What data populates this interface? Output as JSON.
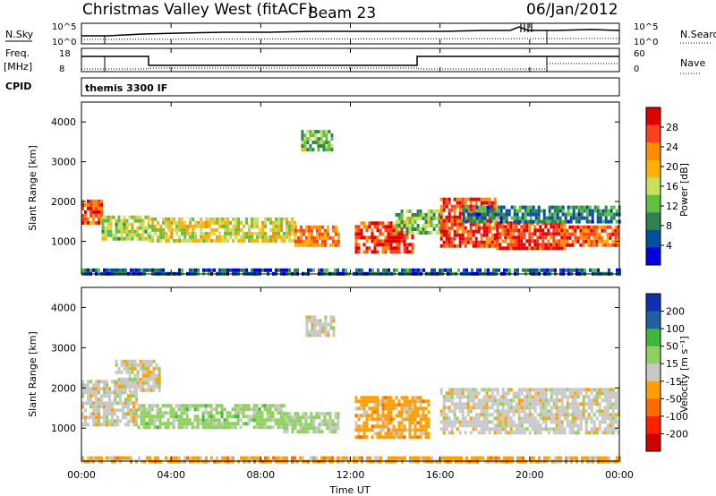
{
  "header": {
    "station": "Christmas Valley West (fitACF)",
    "beam": "Beam 23",
    "date": "06/Jan/2012"
  },
  "strips": {
    "nsky_label": "N.Sky",
    "nsky_ticks": [
      "10^5",
      "10^0"
    ],
    "nsearch_label": "N.Search",
    "nsearch_ticks": [
      "10^5",
      "10^0"
    ],
    "freq_label_1": "Freq.",
    "freq_label_2": "[MHz]",
    "freq_ticks": [
      "18",
      "8"
    ],
    "nave_label": "Nave",
    "nave_ticks": [
      "60",
      "0"
    ],
    "cpid_label": "CPID",
    "cpid_value": "themis 3300 IF"
  },
  "axes": {
    "ylabel": "Slant Range [km]",
    "xlabel": "Time UT",
    "x_ticks": [
      "00:00",
      "04:00",
      "08:00",
      "12:00",
      "16:00",
      "20:00",
      "00:00"
    ],
    "x_range_hours": [
      0,
      24
    ],
    "y_range_km": [
      180,
      4500
    ],
    "y_ticks": [
      1000,
      2000,
      3000,
      4000
    ]
  },
  "colorbars": {
    "power": {
      "label": "Power [dB]",
      "ticks": [
        "28",
        "24",
        "20",
        "16",
        "12",
        "8",
        "4"
      ],
      "colors": [
        "#e00000",
        "#ff4020",
        "#ff8c00",
        "#ffb000",
        "#c8e060",
        "#60c040",
        "#308050",
        "#0050a0",
        "#0000e0"
      ]
    },
    "velocity": {
      "label": "Velocity [m s⁻¹]",
      "ticks": [
        "200",
        "100",
        "50",
        "15",
        "-15",
        "-50",
        "-100",
        "-200"
      ],
      "colors": [
        "#1030b0",
        "#2060a0",
        "#3cb83c",
        "#90d060",
        "#c8c8c8",
        "#ffa000",
        "#ff6a00",
        "#ff2000",
        "#d00000"
      ]
    }
  },
  "chart_data": [
    {
      "type": "heatmap",
      "title": "Power",
      "xlabel": "Time UT",
      "ylabel": "Slant Range [km]",
      "xlim_hours": [
        0,
        24
      ],
      "ylim_km": [
        180,
        4500
      ],
      "colorbar": {
        "label": "Power [dB]",
        "range": [
          0,
          30
        ]
      },
      "regions": [
        {
          "t0": 0.0,
          "t1": 0.9,
          "r0": 1450,
          "r1": 2050,
          "value_db": 24
        },
        {
          "t0": 0.9,
          "t1": 3.0,
          "r0": 1100,
          "r1": 1650,
          "value_db": 14
        },
        {
          "t0": 3.0,
          "t1": 9.5,
          "r0": 1000,
          "r1": 1600,
          "value_db": 16
        },
        {
          "t0": 9.5,
          "t1": 11.5,
          "r0": 900,
          "r1": 1400,
          "value_db": 22
        },
        {
          "t0": 12.2,
          "t1": 14.8,
          "r0": 750,
          "r1": 1500,
          "value_db": 26
        },
        {
          "t0": 14.0,
          "t1": 16.2,
          "r0": 1200,
          "r1": 1800,
          "value_db": 12
        },
        {
          "t0": 16.0,
          "t1": 18.5,
          "r0": 900,
          "r1": 2100,
          "value_db": 26
        },
        {
          "t0": 18.5,
          "t1": 21.5,
          "r0": 850,
          "r1": 1500,
          "value_db": 26
        },
        {
          "t0": 21.5,
          "t1": 24.0,
          "r0": 900,
          "r1": 1400,
          "value_db": 24
        },
        {
          "t0": 17.0,
          "t1": 24.0,
          "r0": 1500,
          "r1": 1900,
          "value_db": 8
        },
        {
          "t0": 9.8,
          "t1": 11.2,
          "r0": 3300,
          "r1": 3800,
          "value_db": 12
        },
        {
          "t0": 0.0,
          "t1": 24.0,
          "r0": 180,
          "r1": 320,
          "value_db": 6
        }
      ]
    },
    {
      "type": "heatmap",
      "title": "Velocity",
      "xlabel": "Time UT",
      "ylabel": "Slant Range [km]",
      "xlim_hours": [
        0,
        24
      ],
      "ylim_km": [
        180,
        4500
      ],
      "colorbar": {
        "label": "Velocity [m s⁻¹]",
        "range": [
          -200,
          200
        ]
      },
      "regions": [
        {
          "t0": 0.0,
          "t1": 2.5,
          "r0": 1100,
          "r1": 2200,
          "value_ms": 0
        },
        {
          "t0": 1.5,
          "t1": 3.5,
          "r0": 1900,
          "r1": 2700,
          "value_ms": 0
        },
        {
          "t0": 2.5,
          "t1": 9.0,
          "r0": 1000,
          "r1": 1600,
          "value_ms": 40
        },
        {
          "t0": 9.0,
          "t1": 11.5,
          "r0": 900,
          "r1": 1400,
          "value_ms": 30
        },
        {
          "t0": 12.2,
          "t1": 15.5,
          "r0": 750,
          "r1": 1800,
          "value_ms": -40
        },
        {
          "t0": 16.0,
          "t1": 24.0,
          "r0": 900,
          "r1": 2000,
          "value_ms": 0
        },
        {
          "t0": 10.0,
          "t1": 11.2,
          "r0": 3300,
          "r1": 3800,
          "value_ms": 0
        },
        {
          "t0": 0.0,
          "t1": 24.0,
          "r0": 180,
          "r1": 300,
          "value_ms": -40
        }
      ]
    }
  ]
}
